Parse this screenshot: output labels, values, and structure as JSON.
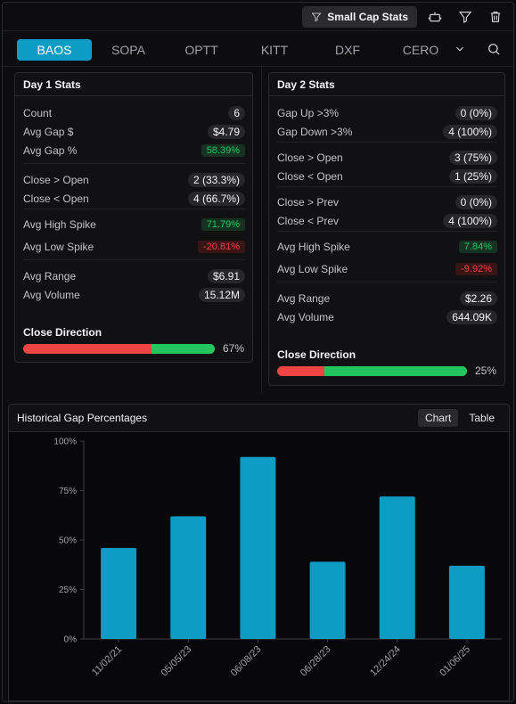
{
  "toolbar": {
    "screener_label": "Small Cap Stats"
  },
  "tickers": {
    "items": [
      "BAOS",
      "SOPA",
      "OPTT",
      "KITT",
      "DXF",
      "CERO"
    ],
    "active": "BAOS"
  },
  "day1": {
    "title": "Day 1 Stats",
    "rows": [
      {
        "label": "Count",
        "value": "6",
        "tone": "neutral"
      },
      {
        "label": "Avg Gap $",
        "value": "$4.79",
        "tone": "neutral"
      },
      {
        "label": "Avg Gap %",
        "value": "58.39%",
        "tone": "green"
      },
      {
        "label": "Close > Open",
        "value": "2 (33.3%)",
        "tone": "neutral"
      },
      {
        "label": "Close < Open",
        "value": "4 (66.7%)",
        "tone": "neutral"
      },
      {
        "label": "Avg High Spike",
        "value": "71.79%",
        "tone": "green"
      },
      {
        "label": "Avg Low Spike",
        "value": "-20.81%",
        "tone": "red"
      },
      {
        "label": "Avg Range",
        "value": "$6.91",
        "tone": "neutral"
      },
      {
        "label": "Avg Volume",
        "value": "15.12M",
        "tone": "neutral"
      }
    ],
    "direction_label": "Close Direction",
    "direction_pct": "67%",
    "direction_value": 0.33
  },
  "day2": {
    "title": "Day 2 Stats",
    "rows": [
      {
        "label": "Gap Up >3%",
        "value": "0 (0%)",
        "tone": "neutral"
      },
      {
        "label": "Gap Down >3%",
        "value": "4 (100%)",
        "tone": "neutral"
      },
      {
        "label": "Close > Open",
        "value": "3 (75%)",
        "tone": "neutral"
      },
      {
        "label": "Close < Open",
        "value": "1 (25%)",
        "tone": "neutral"
      },
      {
        "label": "Close > Prev",
        "value": "0 (0%)",
        "tone": "neutral"
      },
      {
        "label": "Close < Prev",
        "value": "4 (100%)",
        "tone": "neutral"
      },
      {
        "label": "Avg High Spike",
        "value": "7.84%",
        "tone": "green"
      },
      {
        "label": "Avg Low Spike",
        "value": "-9.92%",
        "tone": "red"
      },
      {
        "label": "Avg Range",
        "value": "$2.26",
        "tone": "neutral"
      },
      {
        "label": "Avg Volume",
        "value": "644.09K",
        "tone": "neutral"
      }
    ],
    "direction_label": "Close Direction",
    "direction_pct": "25%",
    "direction_value": 0.75
  },
  "history": {
    "title": "Historical Gap Percentages",
    "chart_label": "Chart",
    "table_label": "Table"
  },
  "colors": {
    "accent": "#0f9cc4",
    "positive": "#22c55e",
    "negative": "#ef4444"
  },
  "chart_data": {
    "type": "bar",
    "categories": [
      "11/02/21",
      "05/05/23",
      "06/08/23",
      "06/28/23",
      "12/24/24",
      "01/06/25"
    ],
    "values": [
      46,
      62,
      92,
      39,
      72,
      37
    ],
    "yticks": [
      "0%",
      "25%",
      "50%",
      "75%",
      "100%"
    ],
    "ylim": [
      0,
      100
    ],
    "title": "",
    "xlabel": "",
    "ylabel": ""
  }
}
